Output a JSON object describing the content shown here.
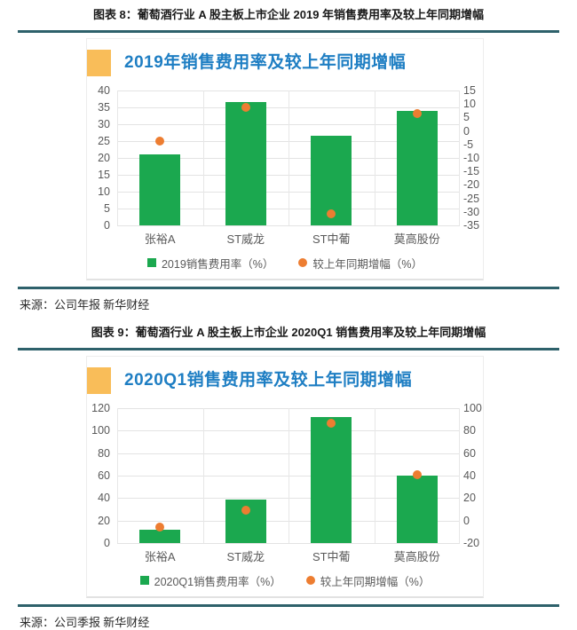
{
  "figures": [
    {
      "caption": "图表 8：葡萄酒行业 A 股主板上市企业 2019 年销售费用率及较上年同期增幅",
      "source": "来源：公司年报  新华财经"
    },
    {
      "caption": "图表 9：葡萄酒行业 A 股主板上市企业 2020Q1 销售费用率及较上年同期增幅",
      "source": "来源：公司季报  新华财经"
    }
  ],
  "chart_data": [
    {
      "type": "bar",
      "title": "2019年销售费用率及较上年同期增幅",
      "categories": [
        "张裕A",
        "ST威龙",
        "ST中葡",
        "莫高股份"
      ],
      "series": [
        {
          "name": "2019销售费用率（%）",
          "type": "bar",
          "axis": "left",
          "color": "#1ba84f",
          "values": [
            21,
            36.5,
            26.5,
            34
          ]
        },
        {
          "name": "较上年同期增幅（%）",
          "type": "scatter",
          "axis": "right",
          "color": "#ed7d31",
          "values": [
            -3.7,
            8.8,
            -30.7,
            6.6
          ]
        }
      ],
      "left_axis": {
        "min": 0,
        "max": 40,
        "ticks": [
          40,
          35,
          30,
          25,
          20,
          15,
          10,
          5,
          0
        ]
      },
      "right_axis": {
        "min": -35,
        "max": 15,
        "ticks": [
          15,
          10,
          5,
          0,
          -5,
          -10,
          -15,
          -20,
          -25,
          -30,
          -35
        ]
      },
      "grid": true,
      "legend_position": "bottom"
    },
    {
      "type": "bar",
      "title": "2020Q1销售费用率及较上年同期增幅",
      "categories": [
        "张裕A",
        "ST威龙",
        "ST中葡",
        "莫高股份"
      ],
      "series": [
        {
          "name": "2020Q1销售费用率（%）",
          "type": "bar",
          "axis": "left",
          "color": "#1ba84f",
          "values": [
            12,
            38.5,
            112,
            60
          ]
        },
        {
          "name": "较上年同期增幅（%）",
          "type": "scatter",
          "axis": "right",
          "color": "#ed7d31",
          "values": [
            -6,
            9,
            86.5,
            41
          ]
        }
      ],
      "left_axis": {
        "min": 0,
        "max": 120,
        "ticks": [
          120,
          100,
          80,
          60,
          40,
          20,
          0
        ]
      },
      "right_axis": {
        "min": -20,
        "max": 100,
        "ticks": [
          100,
          80,
          60,
          40,
          20,
          0,
          -20
        ]
      },
      "grid": true,
      "legend_position": "bottom"
    }
  ],
  "colors": {
    "bar_green": "#1ba84f",
    "dot_orange": "#ed7d31",
    "title_blue": "#1e7ec3",
    "title_square_orange": "#f9bd59",
    "rule_teal": "#2e616b",
    "axis_text_grey": "#595959",
    "gridline_grey": "#e3e3e3"
  }
}
